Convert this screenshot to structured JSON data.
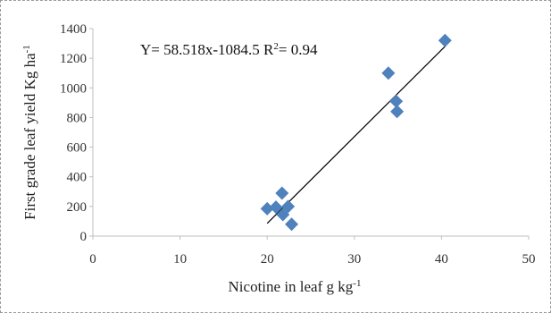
{
  "chart_data": {
    "type": "scatter",
    "title": "",
    "xlabel": "Nicotine  in leaf  g kg",
    "xlabel_sup": "-1",
    "ylabel": "First grade leaf yield Kg ha",
    "ylabel_sup": "-1",
    "xlim": [
      0,
      50
    ],
    "ylim": [
      0,
      1400
    ],
    "x_ticks": [
      0,
      10,
      20,
      30,
      40,
      50
    ],
    "y_ticks": [
      0,
      200,
      400,
      600,
      800,
      1000,
      1200,
      1400
    ],
    "x_tick_labels": [
      "0",
      "10",
      "20",
      "30",
      "40",
      "50"
    ],
    "y_tick_labels": [
      "0",
      "200",
      "400",
      "600",
      "800",
      "1000",
      "1200",
      "1400"
    ],
    "grid": false,
    "marker_color": "#4f81bd",
    "line_color": "#000000",
    "points": [
      {
        "x": 20.0,
        "y": 185
      },
      {
        "x": 21.0,
        "y": 195
      },
      {
        "x": 21.7,
        "y": 290
      },
      {
        "x": 21.8,
        "y": 145
      },
      {
        "x": 22.4,
        "y": 200
      },
      {
        "x": 22.8,
        "y": 80
      },
      {
        "x": 33.9,
        "y": 1100
      },
      {
        "x": 34.8,
        "y": 910
      },
      {
        "x": 34.9,
        "y": 840
      },
      {
        "x": 40.4,
        "y": 1320
      }
    ],
    "trendline": {
      "slope": 58.518,
      "intercept": -1084.5,
      "x_range": [
        20,
        40.5
      ]
    },
    "equation_text": "Y= 58.518x-1084.5  R",
    "r2_sup": "2",
    "r2_value_text": "= 0.94"
  }
}
